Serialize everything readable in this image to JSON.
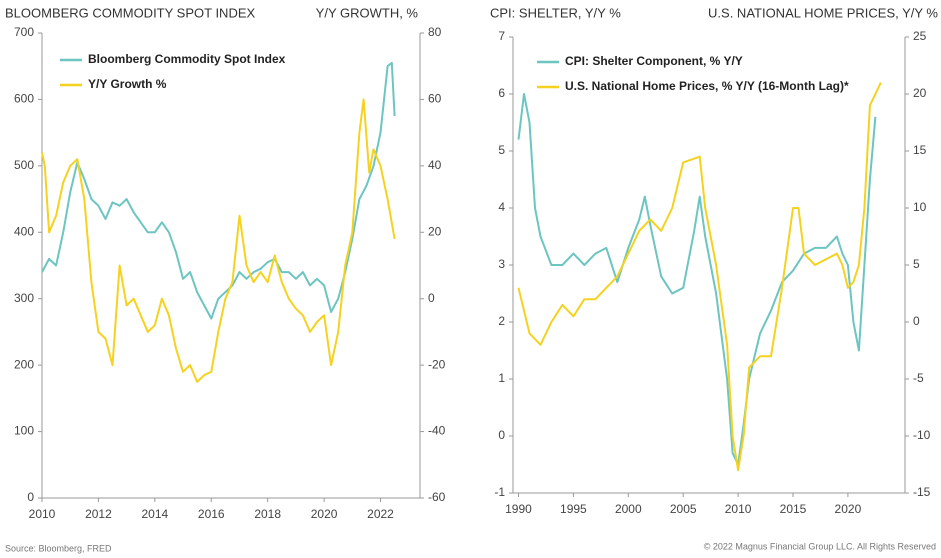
{
  "chart_data": [
    {
      "type": "line",
      "title": "BLOOMBERG COMMODITY SPOT INDEX",
      "y2_title": "Y/Y GROWTH, %",
      "xlim": [
        2010,
        2023.4
      ],
      "xticks": [
        2010,
        2012,
        2014,
        2016,
        2018,
        2020,
        2022
      ],
      "ylim": [
        0,
        700
      ],
      "yticks": [
        0,
        100,
        200,
        300,
        400,
        500,
        600,
        700
      ],
      "y2lim": [
        -60,
        80
      ],
      "y2ticks": [
        -60,
        -40,
        -20,
        0,
        20,
        40,
        60,
        80
      ],
      "series": [
        {
          "name": "Bloomberg Commodity Spot Index",
          "color": "#6cc5c0",
          "x": [
            2010,
            2010.25,
            2010.5,
            2010.75,
            2011,
            2011.25,
            2011.5,
            2011.75,
            2012,
            2012.25,
            2012.5,
            2012.75,
            2013,
            2013.25,
            2013.5,
            2013.75,
            2014,
            2014.25,
            2014.5,
            2014.75,
            2015,
            2015.25,
            2015.5,
            2015.75,
            2016,
            2016.25,
            2016.5,
            2016.75,
            2017,
            2017.25,
            2017.5,
            2017.75,
            2018,
            2018.25,
            2018.5,
            2018.75,
            2019,
            2019.25,
            2019.5,
            2019.75,
            2020,
            2020.25,
            2020.5,
            2020.75,
            2021,
            2021.25,
            2021.5,
            2021.75,
            2022,
            2022.25,
            2022.4,
            2022.5
          ],
          "values": [
            340,
            360,
            350,
            400,
            460,
            505,
            480,
            450,
            440,
            420,
            445,
            440,
            450,
            430,
            415,
            400,
            400,
            415,
            400,
            370,
            330,
            340,
            310,
            290,
            270,
            300,
            310,
            320,
            340,
            330,
            340,
            345,
            355,
            360,
            340,
            340,
            330,
            340,
            320,
            330,
            320,
            280,
            300,
            340,
            390,
            450,
            470,
            500,
            550,
            650,
            655,
            575
          ]
        },
        {
          "name": "Y/Y Growth %",
          "color": "#f5d21f",
          "axis": "y2",
          "x": [
            2010,
            2010.1,
            2010.25,
            2010.5,
            2010.75,
            2011,
            2011.25,
            2011.5,
            2011.75,
            2012,
            2012.25,
            2012.5,
            2012.75,
            2013,
            2013.25,
            2013.5,
            2013.75,
            2014,
            2014.25,
            2014.5,
            2014.75,
            2015,
            2015.25,
            2015.5,
            2015.75,
            2016,
            2016.25,
            2016.5,
            2016.75,
            2017,
            2017.25,
            2017.5,
            2017.75,
            2018,
            2018.25,
            2018.5,
            2018.75,
            2019,
            2019.25,
            2019.5,
            2019.75,
            2020,
            2020.25,
            2020.5,
            2020.75,
            2021,
            2021.25,
            2021.4,
            2021.6,
            2021.75,
            2022,
            2022.25,
            2022.5
          ],
          "values": [
            44,
            40,
            20,
            25,
            35,
            40,
            42,
            30,
            5,
            -10,
            -12,
            -20,
            10,
            -2,
            0,
            -5,
            -10,
            -8,
            0,
            -5,
            -15,
            -22,
            -20,
            -25,
            -23,
            -22,
            -10,
            0,
            5,
            25,
            10,
            5,
            8,
            5,
            13,
            5,
            0,
            -3,
            -5,
            -10,
            -7,
            -5,
            -20,
            -10,
            10,
            20,
            50,
            60,
            38,
            45,
            40,
            30,
            18
          ]
        }
      ]
    },
    {
      "type": "line",
      "title": "CPI: SHELTER, Y/Y %",
      "y2_title": "U.S. NATIONAL HOME PRICES, Y/Y %",
      "xlim": [
        1989.5,
        2025.2
      ],
      "xticks": [
        1990,
        1995,
        2000,
        2005,
        2010,
        2015,
        2020
      ],
      "ylim": [
        -1,
        7
      ],
      "yticks": [
        -1,
        0,
        1,
        2,
        3,
        4,
        5,
        6,
        7
      ],
      "y2lim": [
        -15,
        25
      ],
      "y2ticks": [
        -15,
        -10,
        -5,
        0,
        5,
        10,
        15,
        20,
        25
      ],
      "series": [
        {
          "name": "CPI: Shelter Component, % Y/Y",
          "color": "#6cc5c0",
          "x": [
            1990,
            1990.5,
            1991,
            1991.5,
            1992,
            1993,
            1994,
            1995,
            1996,
            1997,
            1998,
            1999,
            2000,
            2001,
            2001.5,
            2002,
            2003,
            2004,
            2005,
            2006,
            2006.5,
            2007,
            2008,
            2009,
            2009.5,
            2010,
            2010.5,
            2011,
            2012,
            2013,
            2014,
            2015,
            2016,
            2017,
            2018,
            2019,
            2019.5,
            2020,
            2020.5,
            2021,
            2021.5,
            2022,
            2022.5
          ],
          "values": [
            5.2,
            6.0,
            5.5,
            4.0,
            3.5,
            3.0,
            3.0,
            3.2,
            3.0,
            3.2,
            3.3,
            2.7,
            3.3,
            3.8,
            4.2,
            3.7,
            2.8,
            2.5,
            2.6,
            3.6,
            4.2,
            3.5,
            2.5,
            1.0,
            -0.3,
            -0.5,
            0.2,
            1.0,
            1.8,
            2.2,
            2.7,
            2.9,
            3.2,
            3.3,
            3.3,
            3.5,
            3.2,
            3.0,
            2.0,
            1.5,
            3.0,
            4.5,
            5.6
          ]
        },
        {
          "name": "U.S. National Home Prices, % Y/Y (16-Month Lag)*",
          "color": "#f5d21f",
          "axis": "y2",
          "x": [
            1990,
            1991,
            1992,
            1993,
            1994,
            1995,
            1996,
            1997,
            1998,
            1999,
            2000,
            2001,
            2002,
            2003,
            2004,
            2005,
            2006.5,
            2007,
            2008,
            2009,
            2009.5,
            2010,
            2010.5,
            2011,
            2012,
            2013,
            2014,
            2015,
            2015.5,
            2016,
            2017,
            2018,
            2019,
            2019.5,
            2020,
            2020.5,
            2021,
            2021.5,
            2022,
            2022.5,
            2023
          ],
          "values": [
            3,
            -1,
            -2,
            0,
            1.5,
            0.5,
            2,
            2,
            3,
            4,
            6,
            8,
            9,
            8,
            10,
            14,
            14.5,
            10,
            5,
            -2,
            -10,
            -13,
            -10,
            -4,
            -3,
            -3,
            3,
            10,
            10,
            6,
            5,
            5.5,
            6,
            5,
            3,
            3.5,
            5,
            10,
            19,
            20,
            21
          ]
        }
      ]
    }
  ],
  "footer": {
    "source": "Source: Bloomberg, FRED",
    "copyright": "© 2022 Magnus Financial Group LLC. All Rights Reserved"
  }
}
